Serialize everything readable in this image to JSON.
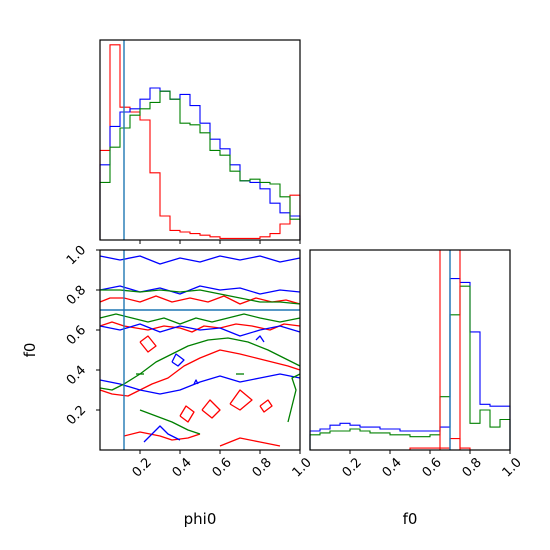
{
  "chart_data": {
    "type": "corner_plot",
    "parameters": [
      "phi0",
      "f0"
    ],
    "axis_labels": {
      "x_left": "phi0",
      "x_right": "f0",
      "y_left": "f0"
    },
    "xlim": [
      0,
      1
    ],
    "ylim": [
      0,
      1
    ],
    "tick_values": [
      0.2,
      0.4,
      0.6,
      0.8,
      1.0
    ],
    "tick_labels": [
      "0.2",
      "0.4",
      "0.6",
      "0.8",
      "1.0"
    ],
    "colors": {
      "red": "#ff0000",
      "blue": "#0000ff",
      "green": "#008000",
      "truth": "#1f77b4"
    },
    "truth_values": {
      "phi0": 0.12,
      "f0": 0.7
    },
    "phi0_histograms": {
      "bin_edges": [
        0,
        0.05,
        0.1,
        0.15,
        0.2,
        0.25,
        0.3,
        0.35,
        0.4,
        0.45,
        0.5,
        0.55,
        0.6,
        0.65,
        0.7,
        0.75,
        0.8,
        0.85,
        0.9,
        0.95,
        1.0
      ],
      "series": [
        {
          "color": "red",
          "values": [
            0.56,
            1.22,
            0.83,
            0.8,
            0.75,
            0.42,
            0.15,
            0.06,
            0.05,
            0.04,
            0.03,
            0.02,
            0.01,
            0.01,
            0.01,
            0.01,
            0.02,
            0.04,
            0.1,
            0.28
          ]
        },
        {
          "color": "blue",
          "values": [
            0.47,
            0.71,
            0.8,
            0.82,
            0.88,
            0.95,
            0.93,
            0.88,
            0.91,
            0.84,
            0.73,
            0.63,
            0.57,
            0.47,
            0.37,
            0.36,
            0.32,
            0.23,
            0.17,
            0.15
          ]
        },
        {
          "color": "green",
          "values": [
            0.36,
            0.58,
            0.7,
            0.78,
            0.82,
            0.86,
            0.93,
            0.88,
            0.73,
            0.72,
            0.67,
            0.56,
            0.53,
            0.43,
            0.37,
            0.38,
            0.36,
            0.35,
            0.27,
            0.13
          ]
        }
      ]
    },
    "f0_histograms": {
      "bin_edges": [
        0,
        0.05,
        0.1,
        0.15,
        0.2,
        0.25,
        0.3,
        0.35,
        0.4,
        0.45,
        0.5,
        0.55,
        0.6,
        0.65,
        0.7,
        0.75,
        0.8,
        0.85,
        0.9,
        0.95,
        1.0
      ],
      "series": [
        {
          "color": "red",
          "values": [
            0,
            0,
            0,
            0,
            0,
            0,
            0,
            0,
            0,
            0,
            0.01,
            0.01,
            0.01,
            0.01,
            0.06,
            0.01,
            0,
            0,
            0,
            0
          ]
        },
        {
          "color": "blue",
          "values": [
            0.1,
            0.11,
            0.13,
            0.14,
            0.13,
            0.12,
            0.12,
            0.11,
            0.11,
            0.1,
            0.1,
            0.1,
            0.1,
            0.12,
            0.9,
            0.88,
            0.62,
            0.24,
            0.23,
            0.23
          ]
        },
        {
          "color": "green",
          "values": [
            0.08,
            0.09,
            0.1,
            0.1,
            0.11,
            0.1,
            0.09,
            0.09,
            0.08,
            0.08,
            0.07,
            0.07,
            0.08,
            0.28,
            0.71,
            0.86,
            0.14,
            0.21,
            0.12,
            0.16
          ]
        }
      ]
    },
    "joint_contours": [
      {
        "color": "red",
        "paths": [
          [
            [
              0,
              0.74
            ],
            [
              0.05,
              0.76
            ],
            [
              0.12,
              0.76
            ],
            [
              0.2,
              0.74
            ],
            [
              0.28,
              0.77
            ],
            [
              0.36,
              0.74
            ],
            [
              0.45,
              0.76
            ],
            [
              0.54,
              0.74
            ],
            [
              0.62,
              0.77
            ],
            [
              0.7,
              0.73
            ],
            [
              0.78,
              0.76
            ],
            [
              0.86,
              0.74
            ],
            [
              0.93,
              0.75
            ],
            [
              1,
              0.73
            ]
          ],
          [
            [
              0,
              0.62
            ],
            [
              0.06,
              0.64
            ],
            [
              0.12,
              0.62
            ],
            [
              0.18,
              0.61
            ],
            [
              0.24,
              0.6
            ],
            [
              0.32,
              0.62
            ],
            [
              0.4,
              0.61
            ],
            [
              0.46,
              0.59
            ],
            [
              0.52,
              0.62
            ],
            [
              0.6,
              0.61
            ],
            [
              0.68,
              0.63
            ],
            [
              0.76,
              0.62
            ],
            [
              0.85,
              0.6
            ],
            [
              0.92,
              0.63
            ],
            [
              1,
              0.62
            ]
          ],
          [
            [
              0,
              0.3
            ],
            [
              0.06,
              0.28
            ],
            [
              0.14,
              0.27
            ],
            [
              0.2,
              0.3
            ],
            [
              0.26,
              0.33
            ],
            [
              0.34,
              0.36
            ],
            [
              0.42,
              0.42
            ],
            [
              0.5,
              0.46
            ],
            [
              0.6,
              0.5
            ],
            [
              0.7,
              0.48
            ],
            [
              0.78,
              0.46
            ],
            [
              0.86,
              0.44
            ],
            [
              0.94,
              0.42
            ],
            [
              1,
              0.4
            ]
          ],
          [
            [
              0.2,
              0.54
            ],
            [
              0.24,
              0.57
            ],
            [
              0.28,
              0.52
            ],
            [
              0.24,
              0.49
            ],
            [
              0.2,
              0.54
            ]
          ],
          [
            [
              0.4,
              0.17
            ],
            [
              0.43,
              0.22
            ],
            [
              0.47,
              0.19
            ],
            [
              0.44,
              0.14
            ],
            [
              0.4,
              0.17
            ]
          ],
          [
            [
              0.51,
              0.2
            ],
            [
              0.55,
              0.25
            ],
            [
              0.6,
              0.2
            ],
            [
              0.56,
              0.16
            ],
            [
              0.51,
              0.2
            ]
          ],
          [
            [
              0.65,
              0.23
            ],
            [
              0.7,
              0.3
            ],
            [
              0.76,
              0.25
            ],
            [
              0.7,
              0.2
            ],
            [
              0.65,
              0.23
            ]
          ],
          [
            [
              0.8,
              0.22
            ],
            [
              0.84,
              0.25
            ],
            [
              0.86,
              0.22
            ],
            [
              0.82,
              0.19
            ],
            [
              0.8,
              0.22
            ]
          ],
          [
            [
              0.12,
              0.07
            ],
            [
              0.2,
              0.09
            ],
            [
              0.3,
              0.07
            ],
            [
              0.36,
              0.05
            ],
            [
              0.44,
              0.06
            ],
            [
              0.5,
              0.08
            ]
          ],
          [
            [
              0.6,
              0.02
            ],
            [
              0.7,
              0.06
            ],
            [
              0.8,
              0.04
            ],
            [
              0.9,
              0.02
            ]
          ]
        ]
      },
      {
        "color": "blue",
        "paths": [
          [
            [
              0,
              0.97
            ],
            [
              0.1,
              0.95
            ],
            [
              0.2,
              0.97
            ],
            [
              0.3,
              0.93
            ],
            [
              0.4,
              0.96
            ],
            [
              0.5,
              0.94
            ],
            [
              0.6,
              0.97
            ],
            [
              0.7,
              0.95
            ],
            [
              0.8,
              0.97
            ],
            [
              0.9,
              0.94
            ],
            [
              1,
              0.96
            ]
          ],
          [
            [
              0,
              0.8
            ],
            [
              0.1,
              0.82
            ],
            [
              0.2,
              0.79
            ],
            [
              0.3,
              0.81
            ],
            [
              0.4,
              0.78
            ],
            [
              0.5,
              0.82
            ],
            [
              0.6,
              0.8
            ],
            [
              0.7,
              0.81
            ],
            [
              0.8,
              0.78
            ],
            [
              0.9,
              0.8
            ],
            [
              1,
              0.79
            ]
          ],
          [
            [
              0,
              0.62
            ],
            [
              0.1,
              0.6
            ],
            [
              0.2,
              0.63
            ],
            [
              0.3,
              0.59
            ],
            [
              0.4,
              0.62
            ],
            [
              0.5,
              0.6
            ],
            [
              0.6,
              0.61
            ],
            [
              0.7,
              0.57
            ],
            [
              0.8,
              0.6
            ],
            [
              0.9,
              0.62
            ],
            [
              1,
              0.59
            ]
          ],
          [
            [
              0,
              0.35
            ],
            [
              0.1,
              0.33
            ],
            [
              0.2,
              0.3
            ],
            [
              0.3,
              0.28
            ],
            [
              0.4,
              0.3
            ],
            [
              0.5,
              0.34
            ],
            [
              0.6,
              0.37
            ],
            [
              0.7,
              0.34
            ],
            [
              0.8,
              0.36
            ],
            [
              0.9,
              0.38
            ],
            [
              1,
              0.36
            ]
          ],
          [
            [
              0.36,
              0.44
            ],
            [
              0.38,
              0.48
            ],
            [
              0.42,
              0.45
            ],
            [
              0.39,
              0.42
            ],
            [
              0.36,
              0.44
            ]
          ],
          [
            [
              0.47,
              0.33
            ],
            [
              0.48,
              0.35
            ],
            [
              0.49,
              0.33
            ]
          ],
          [
            [
              0.78,
              0.55
            ],
            [
              0.8,
              0.57
            ],
            [
              0.82,
              0.54
            ]
          ],
          [
            [
              0.22,
              0.04
            ],
            [
              0.26,
              0.08
            ],
            [
              0.3,
              0.12
            ],
            [
              0.34,
              0.08
            ],
            [
              0.4,
              0.05
            ]
          ]
        ]
      },
      {
        "color": "green",
        "paths": [
          [
            [
              0,
              0.8
            ],
            [
              0.1,
              0.8
            ],
            [
              0.2,
              0.79
            ],
            [
              0.3,
              0.8
            ],
            [
              0.4,
              0.79
            ],
            [
              0.5,
              0.8
            ],
            [
              0.6,
              0.78
            ],
            [
              0.7,
              0.76
            ],
            [
              0.8,
              0.74
            ],
            [
              0.9,
              0.74
            ],
            [
              1,
              0.73
            ]
          ],
          [
            [
              0,
              0.66
            ],
            [
              0.08,
              0.68
            ],
            [
              0.16,
              0.66
            ],
            [
              0.24,
              0.64
            ],
            [
              0.32,
              0.66
            ],
            [
              0.4,
              0.63
            ],
            [
              0.48,
              0.66
            ],
            [
              0.56,
              0.64
            ],
            [
              0.64,
              0.66
            ],
            [
              0.72,
              0.68
            ],
            [
              0.8,
              0.66
            ],
            [
              0.9,
              0.64
            ],
            [
              1,
              0.66
            ]
          ],
          [
            [
              0,
              0.31
            ],
            [
              0.06,
              0.3
            ],
            [
              0.12,
              0.33
            ],
            [
              0.2,
              0.38
            ],
            [
              0.28,
              0.44
            ],
            [
              0.36,
              0.48
            ],
            [
              0.44,
              0.52
            ],
            [
              0.54,
              0.55
            ],
            [
              0.64,
              0.56
            ],
            [
              0.74,
              0.54
            ],
            [
              0.84,
              0.5
            ],
            [
              0.92,
              0.46
            ],
            [
              1,
              0.42
            ]
          ],
          [
            [
              0.2,
              0.2
            ],
            [
              0.28,
              0.17
            ],
            [
              0.36,
              0.14
            ],
            [
              0.44,
              0.1
            ],
            [
              0.5,
              0.08
            ]
          ],
          [
            [
              0.94,
              0.14
            ],
            [
              0.96,
              0.22
            ],
            [
              0.98,
              0.3
            ],
            [
              0.96,
              0.36
            ],
            [
              1,
              0.38
            ]
          ],
          [
            [
              0.18,
              0.38
            ],
            [
              0.22,
              0.38
            ]
          ],
          [
            [
              0.68,
              0.38
            ],
            [
              0.72,
              0.38
            ]
          ]
        ]
      }
    ]
  }
}
